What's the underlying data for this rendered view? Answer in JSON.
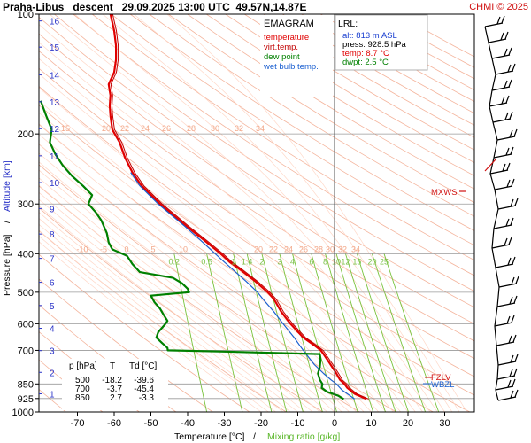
{
  "header": {
    "title": "Praha-Libus   descent   29.09.2025 13:00 UTC  49.57N,14.87E",
    "copyright": "CHMI © 2025"
  },
  "colors": {
    "temperature": "#e00000",
    "virtual_temp": "#c00000",
    "dew_point": "#008000",
    "wet_bulb": "#1a5fd0",
    "dry_adiabat": "#f4b49c",
    "moist_adiabat": "#ffd8c8",
    "mixing_ratio": "#79c23c",
    "altitude": "#2a33c8",
    "isobar_grid": "#9a9a9a"
  },
  "legend": {
    "title": "EMAGRAM",
    "items": [
      {
        "label": "temperature",
        "color": "#e00000"
      },
      {
        "label": "virt.temp.",
        "color": "#c00000"
      },
      {
        "label": "dew point",
        "color": "#008000"
      },
      {
        "label": "wet bulb temp.",
        "color": "#1a5fd0"
      }
    ]
  },
  "lrl": {
    "title": "LRL:",
    "alt": "alt: 813 m ASL",
    "press": "press: 928.5 hPa",
    "temp": "temp: 8.7 °C",
    "dwpt": "dwpt: 2.5 °C"
  },
  "levels_table": {
    "headers": [
      "p [hPa]",
      "T",
      "Td [°C]"
    ],
    "rows": [
      [
        "500",
        "-18.2",
        "-39.6"
      ],
      [
        "700",
        "-3.7",
        "-45.4"
      ],
      [
        "850",
        "2.7",
        "-3.3"
      ]
    ]
  },
  "annotations": {
    "mxws": "MXWS",
    "fzlv": "FZLV",
    "wbzl": "WBZL"
  },
  "chart_data": {
    "type": "line",
    "title": "Praha-Libus   descent   29.09.2025 13:00 UTC  49.57N,14.87E",
    "xlabel": "Temperature [°C]",
    "xlabel_sep": "/",
    "xlabel2": "Mixing ratio [g/kg]",
    "ylabel": "Pressure [hPa]",
    "ylabel_sep": "/",
    "ylabel2": "Altitude [km]",
    "xlim": [
      -80,
      40
    ],
    "ylim": [
      1000,
      100
    ],
    "yscale": "log",
    "x_ticks": [
      -70,
      -60,
      -50,
      -40,
      -30,
      -20,
      -10,
      0,
      10,
      20,
      30
    ],
    "p_ticks": [
      100,
      200,
      300,
      400,
      500,
      600,
      700,
      850,
      925,
      1000
    ],
    "altitude_km": [
      {
        "km": 1,
        "p": 900
      },
      {
        "km": 2,
        "p": 795
      },
      {
        "km": 3,
        "p": 701
      },
      {
        "km": 4,
        "p": 616
      },
      {
        "km": 5,
        "p": 540
      },
      {
        "km": 6,
        "p": 472
      },
      {
        "km": 7,
        "p": 411
      },
      {
        "km": 8,
        "p": 357
      },
      {
        "km": 9,
        "p": 308
      },
      {
        "km": 10,
        "p": 265
      },
      {
        "km": 11,
        "p": 227
      },
      {
        "km": 12,
        "p": 194
      },
      {
        "km": 13,
        "p": 166
      },
      {
        "km": 14,
        "p": 142
      },
      {
        "km": 15,
        "p": 121
      },
      {
        "km": 16,
        "p": 104
      }
    ],
    "mixing_ratio_labels": [
      "0.2",
      "0.5",
      "1",
      "1.4",
      "2",
      "3",
      "4",
      "6",
      "8",
      "10",
      "12",
      "15",
      "20",
      "25"
    ],
    "mixing_ratio_values": [
      0.2,
      0.5,
      1,
      1.4,
      2,
      3,
      4,
      6,
      8,
      10,
      12,
      15,
      20,
      25
    ],
    "moist_labels_upper": [
      "15",
      "20",
      "22",
      "24",
      "26",
      "28",
      "30",
      "32",
      "34"
    ],
    "moist_labels_lower": [
      "-10",
      "-5",
      "0",
      "5",
      "10",
      "20",
      "22",
      "24",
      "26",
      "28",
      "30",
      "32",
      "34"
    ],
    "series": [
      {
        "name": "temperature",
        "points": [
          [
            928,
            8.7
          ],
          [
            900,
            5.5
          ],
          [
            870,
            3.5
          ],
          [
            850,
            2.7
          ],
          [
            830,
            1.5
          ],
          [
            800,
            0.5
          ],
          [
            750,
            -1.5
          ],
          [
            715,
            -3.0
          ],
          [
            700,
            -3.7
          ],
          [
            680,
            -5.5
          ],
          [
            650,
            -8.5
          ],
          [
            600,
            -12.0
          ],
          [
            560,
            -14.5
          ],
          [
            520,
            -16.5
          ],
          [
            500,
            -18.2
          ],
          [
            470,
            -21.5
          ],
          [
            440,
            -25.5
          ],
          [
            420,
            -28.5
          ],
          [
            400,
            -31.0
          ],
          [
            370,
            -35.5
          ],
          [
            340,
            -40.5
          ],
          [
            300,
            -47.5
          ],
          [
            270,
            -52.5
          ],
          [
            250,
            -55.0
          ],
          [
            230,
            -57.0
          ],
          [
            210,
            -58.5
          ],
          [
            195,
            -60.5
          ],
          [
            180,
            -61.0
          ],
          [
            170,
            -61.2
          ],
          [
            160,
            -61.0
          ],
          [
            150,
            -61.5
          ],
          [
            140,
            -60.0
          ],
          [
            130,
            -59.5
          ],
          [
            120,
            -59.5
          ],
          [
            110,
            -60.0
          ],
          [
            100,
            -61.0
          ]
        ]
      },
      {
        "name": "wet bulb temp.",
        "points": [
          [
            928,
            5.5
          ],
          [
            900,
            3.5
          ],
          [
            880,
            2.0
          ],
          [
            850,
            0.5
          ],
          [
            830,
            -1.0
          ],
          [
            800,
            -3.0
          ],
          [
            760,
            -5.5
          ],
          [
            720,
            -7.5
          ],
          [
            700,
            -8.5
          ],
          [
            680,
            -9.5
          ],
          [
            650,
            -11.0
          ],
          [
            600,
            -14.0
          ],
          [
            560,
            -16.5
          ],
          [
            520,
            -19.5
          ],
          [
            500,
            -21.0
          ],
          [
            470,
            -24.0
          ],
          [
            440,
            -27.5
          ],
          [
            420,
            -30.0
          ],
          [
            400,
            -32.5
          ],
          [
            370,
            -36.5
          ],
          [
            340,
            -41.0
          ],
          [
            300,
            -48.0
          ],
          [
            270,
            -53.0
          ],
          [
            250,
            -55.5
          ]
        ]
      },
      {
        "name": "dew point",
        "points": [
          [
            928,
            2.5
          ],
          [
            910,
            1.0
          ],
          [
            890,
            -2.0
          ],
          [
            870,
            -3.5
          ],
          [
            850,
            -3.3
          ],
          [
            830,
            -4.0
          ],
          [
            800,
            -4.5
          ],
          [
            770,
            -4.0
          ],
          [
            740,
            -3.8
          ],
          [
            715,
            -4.0
          ],
          [
            705,
            -30.0
          ],
          [
            700,
            -45.4
          ],
          [
            690,
            -45.5
          ],
          [
            670,
            -47.0
          ],
          [
            650,
            -48.5
          ],
          [
            630,
            -48.0
          ],
          [
            600,
            -46.0
          ],
          [
            590,
            -45.5
          ],
          [
            570,
            -46.5
          ],
          [
            550,
            -47.5
          ],
          [
            530,
            -49.0
          ],
          [
            510,
            -50.0
          ],
          [
            500,
            -39.6
          ],
          [
            490,
            -40.0
          ],
          [
            475,
            -41.5
          ],
          [
            460,
            -44.0
          ],
          [
            445,
            -53.0
          ],
          [
            425,
            -55.0
          ],
          [
            405,
            -56.5
          ],
          [
            390,
            -60.5
          ],
          [
            375,
            -61.5
          ],
          [
            355,
            -62.0
          ],
          [
            330,
            -63.5
          ],
          [
            315,
            -65.0
          ],
          [
            300,
            -67.0
          ],
          [
            285,
            -66.0
          ],
          [
            270,
            -68.5
          ],
          [
            255,
            -71.5
          ],
          [
            240,
            -74.0
          ],
          [
            225,
            -76.0
          ],
          [
            210,
            -77.5
          ],
          [
            195,
            -77.0
          ],
          [
            180,
            -78.5
          ],
          [
            165,
            -80.0
          ]
        ]
      }
    ]
  }
}
